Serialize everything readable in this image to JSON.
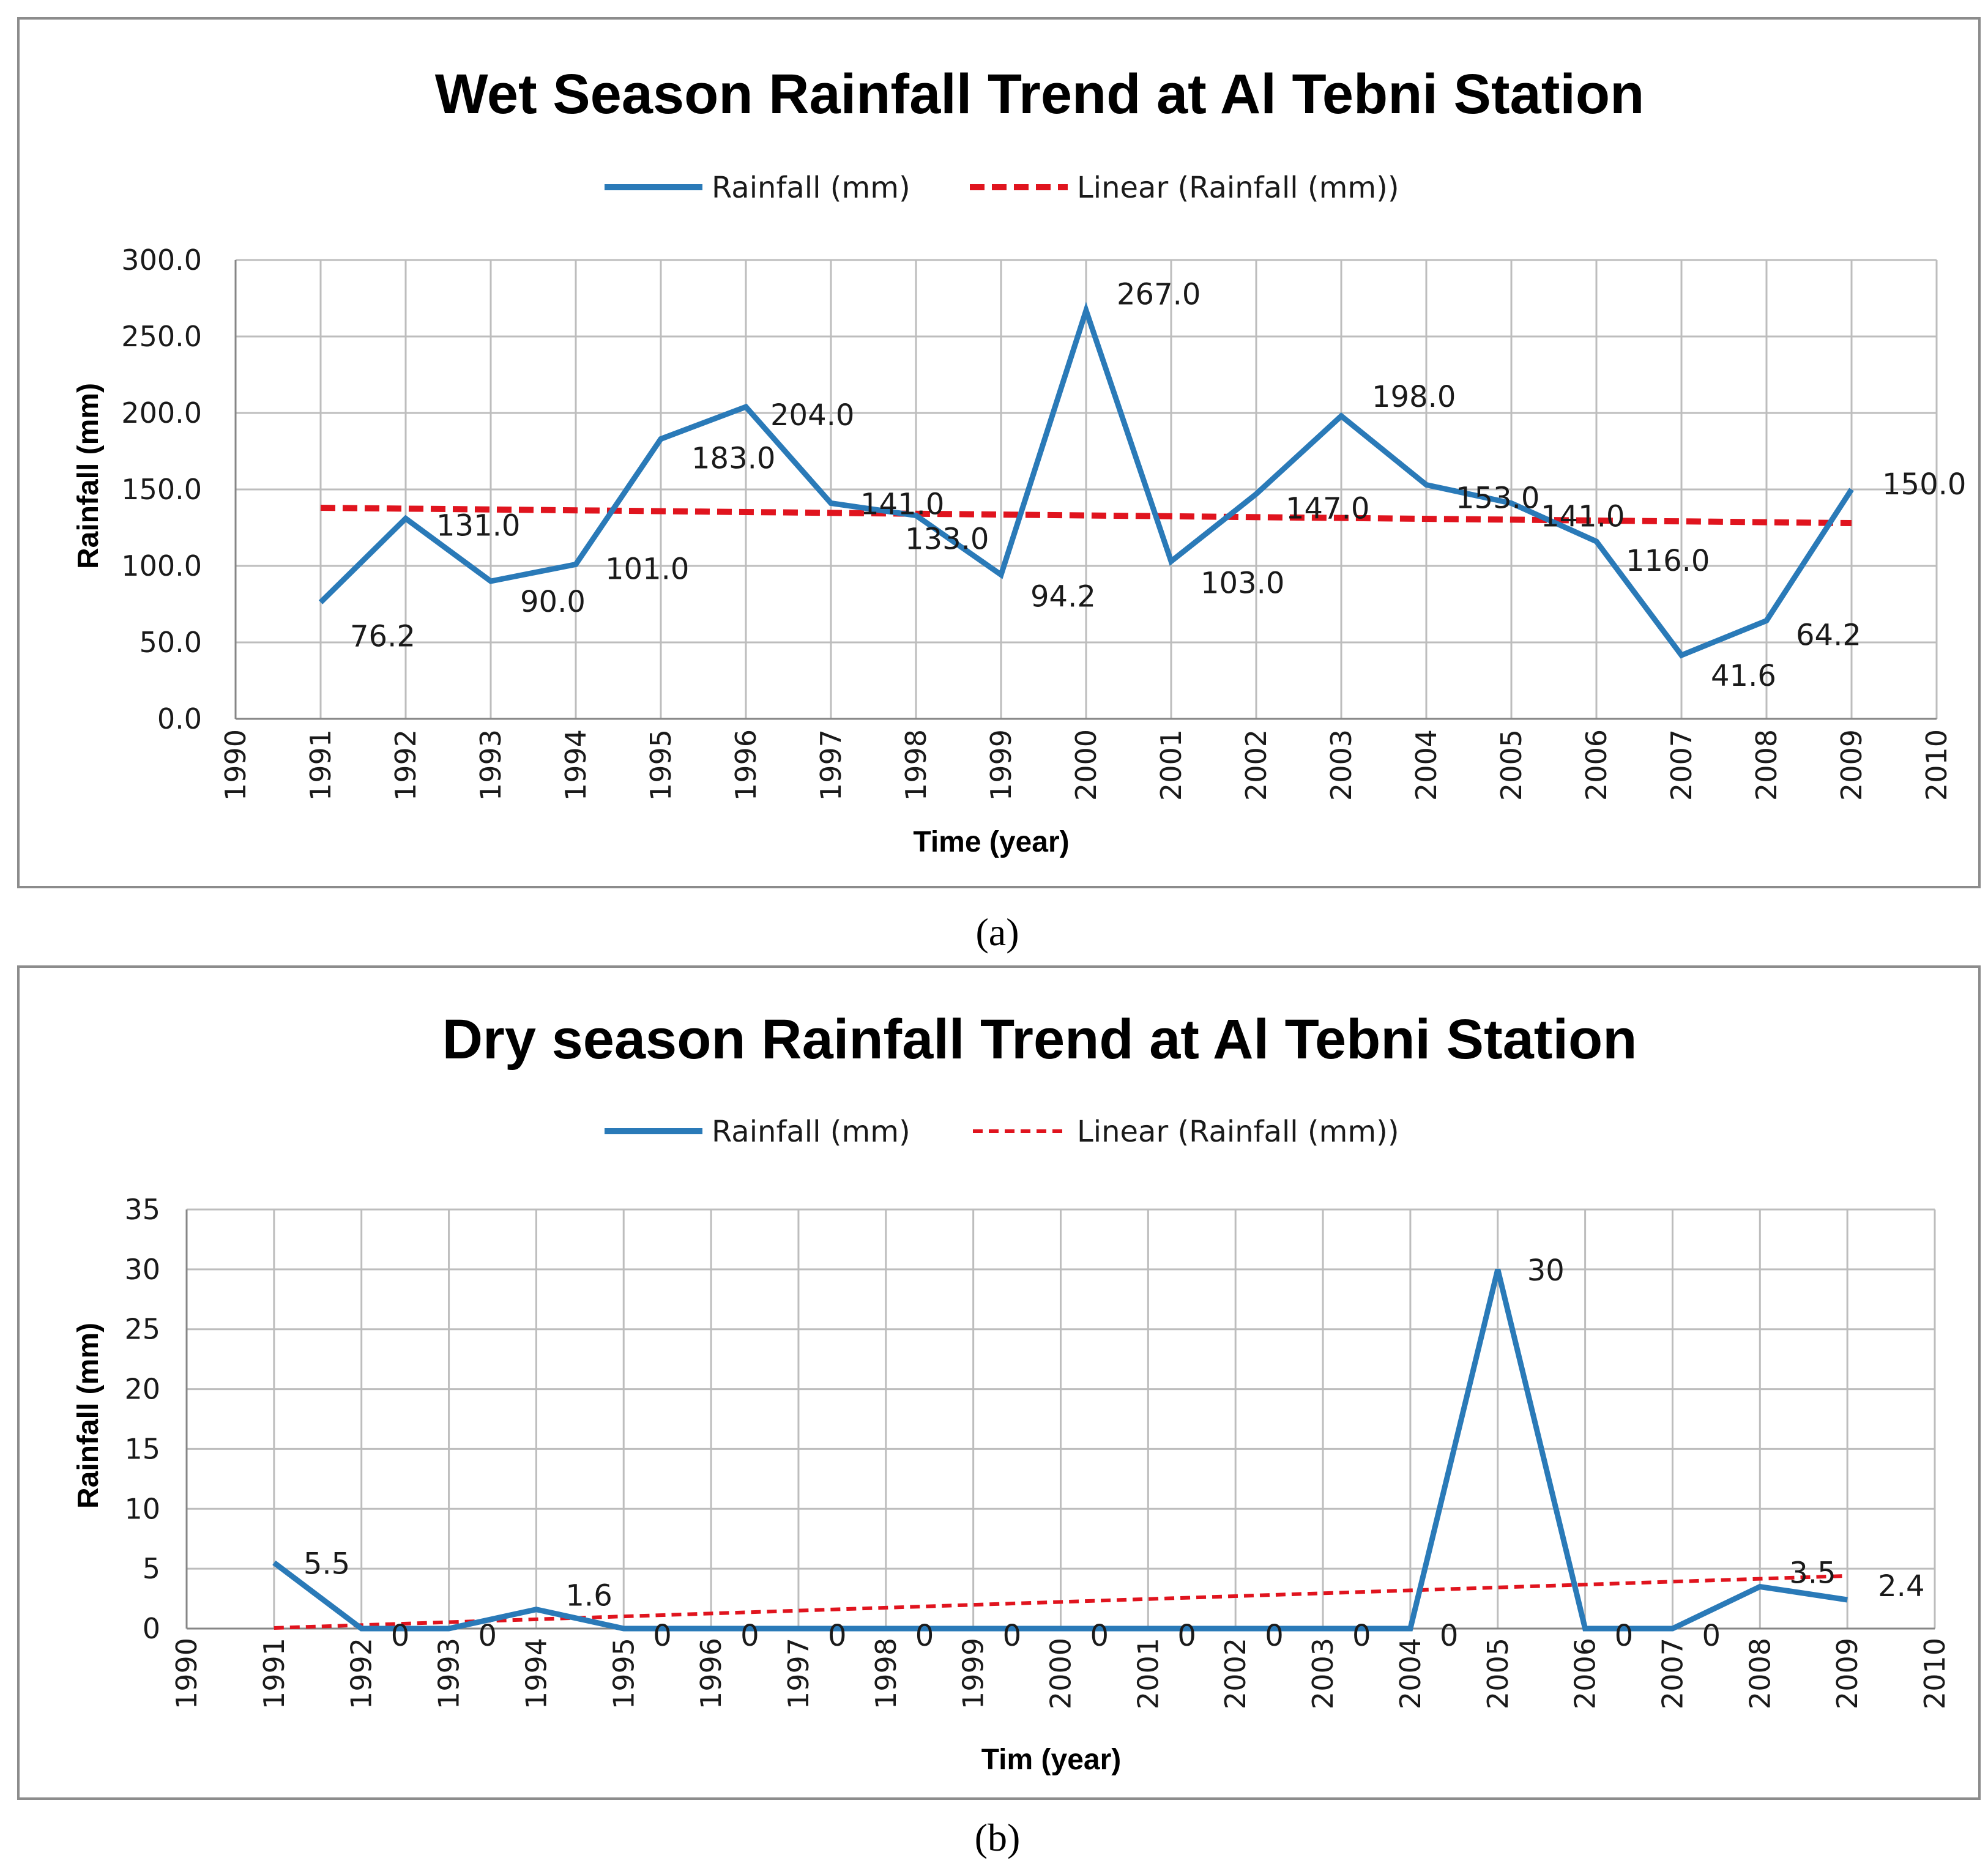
{
  "chart_data": [
    {
      "type": "line",
      "title": "Wet Season Rainfall Trend at Al Tebni Station",
      "xlabel": "Time (year)",
      "ylabel": "Rainfall (mm)",
      "xlim": [
        1990,
        2010
      ],
      "ylim": [
        0,
        300
      ],
      "x_ticks": [
        1990,
        1991,
        1992,
        1993,
        1994,
        1995,
        1996,
        1997,
        1998,
        1999,
        2000,
        2001,
        2002,
        2003,
        2004,
        2005,
        2006,
        2007,
        2008,
        2009,
        2010
      ],
      "y_ticks": [
        "0.0",
        "50.0",
        "100.0",
        "150.0",
        "200.0",
        "250.0",
        "300.0"
      ],
      "grid": true,
      "legend": "top",
      "series": [
        {
          "name": "Rainfall (mm)",
          "color": "#2a7ab8",
          "x": [
            1991,
            1992,
            1993,
            1994,
            1995,
            1996,
            1997,
            1998,
            1999,
            2000,
            2001,
            2002,
            2003,
            2004,
            2005,
            2006,
            2007,
            2008,
            2009
          ],
          "values": [
            76.2,
            131.0,
            90.0,
            101.0,
            183.0,
            204.0,
            141.0,
            133.0,
            94.2,
            267.0,
            103.0,
            147.0,
            198.0,
            153.0,
            141.0,
            116.0,
            41.6,
            64.2,
            150.0
          ],
          "labels": [
            "76.2",
            "131.0",
            "90.0",
            "101.0",
            "183.0",
            "204.0",
            "141.0",
            "133.0",
            "94.2",
            "267.0",
            "103.0",
            "147.0",
            "198.0",
            "153.0",
            "141.0",
            "116.0",
            "41.6",
            "64.2",
            "150.0"
          ]
        },
        {
          "name": "Linear (Rainfall (mm))",
          "color": "#e0141e",
          "style": "dashed",
          "x": [
            1991,
            2009
          ],
          "values": [
            138,
            128
          ]
        }
      ],
      "panel_label": "(a)"
    },
    {
      "type": "line",
      "title": "Dry season Rainfall Trend at Al Tebni Station",
      "xlabel": "Tim (year)",
      "ylabel": "Rainfall (mm)",
      "xlim": [
        1990,
        2010
      ],
      "ylim": [
        0,
        35
      ],
      "x_ticks": [
        1990,
        1991,
        1992,
        1993,
        1994,
        1995,
        1996,
        1997,
        1998,
        1999,
        2000,
        2001,
        2002,
        2003,
        2004,
        2005,
        2006,
        2007,
        2008,
        2009,
        2010
      ],
      "y_ticks": [
        "0",
        "5",
        "10",
        "15",
        "20",
        "25",
        "30",
        "35"
      ],
      "grid": true,
      "legend": "top",
      "series": [
        {
          "name": "Rainfall (mm)",
          "color": "#2a7ab8",
          "x": [
            1991,
            1992,
            1993,
            1994,
            1995,
            1996,
            1997,
            1998,
            1999,
            2000,
            2001,
            2002,
            2003,
            2004,
            2005,
            2006,
            2007,
            2008,
            2009
          ],
          "values": [
            5.5,
            0,
            0,
            1.6,
            0,
            0,
            0,
            0,
            0,
            0,
            0,
            0,
            0,
            0,
            30,
            0,
            0,
            3.5,
            2.4
          ],
          "labels": [
            "5.5",
            "0",
            "0",
            "1.6",
            "0",
            "0",
            "0",
            "0",
            "0",
            "0",
            "0",
            "0",
            "0",
            "0",
            "30",
            "0",
            "0",
            "3.5",
            "2.4"
          ]
        },
        {
          "name": "Linear (Rainfall (mm))",
          "color": "#e0141e",
          "style": "dashed",
          "x": [
            1991,
            2009
          ],
          "values": [
            0.05,
            4.4
          ]
        }
      ],
      "panel_label": "(b)"
    }
  ]
}
